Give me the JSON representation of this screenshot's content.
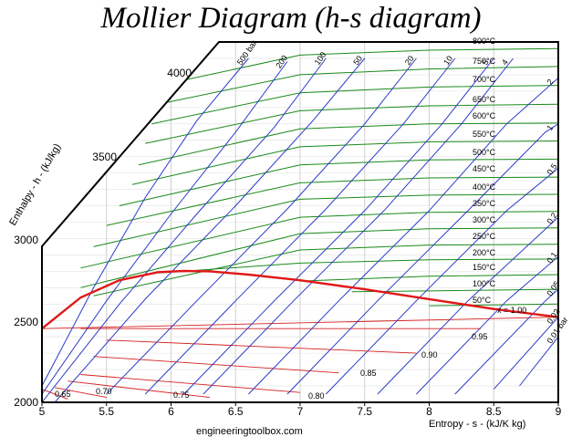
{
  "title": "Mollier Diagram (h-s diagram)",
  "source": "engineeringtoolbox.com",
  "colors": {
    "isobar": "#2a3cc8",
    "isotherm": "#1a8a1a",
    "saturation": "#e01818",
    "quality": "#d62020",
    "axes": "#000000"
  },
  "chart_data": {
    "type": "line",
    "title": "Mollier Diagram (h-s diagram)",
    "xlabel": "Entropy - s - (kJ/K kg)",
    "ylabel": "Enthalpy - h - (kJ/kg)",
    "xlim": [
      5,
      9
    ],
    "ylim": [
      2000,
      4200
    ],
    "x_ticks": [
      "5",
      "5.5",
      "6",
      "6.5",
      "7",
      "7.5",
      "8",
      "8.5",
      "9"
    ],
    "y_ticks": [
      "2000",
      "2500",
      "3000",
      "3500",
      "4000"
    ],
    "grid": true,
    "saturation_curve": {
      "s": [
        5.0,
        5.3,
        5.6,
        5.9,
        6.1,
        6.3,
        6.6,
        7.0,
        7.5,
        8.0,
        8.5,
        9.0
      ],
      "h": [
        2450,
        2640,
        2745,
        2795,
        2802,
        2800,
        2780,
        2745,
        2690,
        2630,
        2570,
        2520
      ]
    },
    "isobars": [
      {
        "name": "500 bar",
        "s": [
          5.0,
          5.4,
          5.8,
          6.2,
          6.6
        ],
        "h": [
          2100,
          2700,
          3250,
          3720,
          4100
        ]
      },
      {
        "name": "200",
        "s": [
          5.0,
          5.5,
          6.0,
          6.5,
          6.9
        ],
        "h": [
          2050,
          2620,
          3150,
          3650,
          4080
        ]
      },
      {
        "name": "100",
        "s": [
          5.0,
          5.6,
          6.2,
          6.8,
          7.2
        ],
        "h": [
          2000,
          2600,
          3150,
          3680,
          4100
        ]
      },
      {
        "name": "50",
        "s": [
          5.1,
          5.8,
          6.5,
          7.1,
          7.5
        ],
        "h": [
          2000,
          2630,
          3200,
          3720,
          4100
        ]
      },
      {
        "name": "20",
        "s": [
          5.5,
          6.2,
          6.9,
          7.5,
          7.9
        ],
        "h": [
          2050,
          2620,
          3180,
          3700,
          4100
        ]
      },
      {
        "name": "10",
        "s": [
          5.8,
          6.5,
          7.2,
          7.8,
          8.2
        ],
        "h": [
          2050,
          2620,
          3180,
          3700,
          4100
        ]
      },
      {
        "name": "5",
        "s": [
          6.1,
          6.8,
          7.5,
          8.1,
          8.5
        ],
        "h": [
          2050,
          2620,
          3170,
          3700,
          4100
        ]
      },
      {
        "name": "4",
        "s": [
          6.25,
          6.95,
          7.65,
          8.25,
          8.65
        ],
        "h": [
          2050,
          2620,
          3170,
          3700,
          4100
        ]
      },
      {
        "name": "2",
        "s": [
          6.6,
          7.3,
          8.0,
          8.6,
          9.0
        ],
        "h": [
          2050,
          2620,
          3170,
          3700,
          3980
        ]
      },
      {
        "name": "1",
        "s": [
          6.9,
          7.6,
          8.3,
          8.9,
          9.0
        ],
        "h": [
          2050,
          2620,
          3170,
          3650,
          3700
        ]
      },
      {
        "name": "0.5",
        "s": [
          7.2,
          7.9,
          8.6,
          9.0
        ],
        "h": [
          2050,
          2620,
          3170,
          3430
        ]
      },
      {
        "name": "0.2",
        "s": [
          7.6,
          8.3,
          9.0
        ],
        "h": [
          2050,
          2620,
          3130
        ]
      },
      {
        "name": "0.1",
        "s": [
          7.9,
          8.6,
          9.0
        ],
        "h": [
          2050,
          2620,
          2890
        ]
      },
      {
        "name": "0.05",
        "s": [
          8.2,
          8.9,
          9.0
        ],
        "h": [
          2050,
          2620,
          2690
        ]
      },
      {
        "name": "0.02",
        "s": [
          8.5,
          9.0
        ],
        "h": [
          2080,
          2520
        ]
      },
      {
        "name": "0.01 bar",
        "s": [
          8.7,
          9.0
        ],
        "h": [
          2100,
          2400
        ]
      }
    ],
    "isotherms": [
      {
        "name": "800°C",
        "s": [
          6.0,
          7.0,
          8.0,
          9.0
        ],
        "h": [
          3950,
          4120,
          4150,
          4160
        ]
      },
      {
        "name": "750°C",
        "s": [
          5.9,
          7.0,
          8.0,
          9.0
        ],
        "h": [
          3820,
          4000,
          4035,
          4050
        ]
      },
      {
        "name": "700°C",
        "s": [
          5.85,
          7.0,
          8.0,
          9.0
        ],
        "h": [
          3700,
          3890,
          3925,
          3935
        ]
      },
      {
        "name": "650°C",
        "s": [
          5.8,
          7.0,
          8.0,
          9.0
        ],
        "h": [
          3580,
          3780,
          3810,
          3820
        ]
      },
      {
        "name": "600°C",
        "s": [
          5.75,
          7.0,
          8.0,
          9.0
        ],
        "h": [
          3450,
          3670,
          3700,
          3705
        ]
      },
      {
        "name": "550°C",
        "s": [
          5.7,
          7.0,
          8.0,
          9.0
        ],
        "h": [
          3330,
          3560,
          3590,
          3595
        ]
      },
      {
        "name": "500°C",
        "s": [
          5.6,
          7.0,
          8.0,
          9.0
        ],
        "h": [
          3200,
          3450,
          3480,
          3485
        ]
      },
      {
        "name": "450°C",
        "s": [
          5.5,
          7.0,
          8.0,
          9.0
        ],
        "h": [
          3080,
          3340,
          3370,
          3375
        ]
      },
      {
        "name": "400°C",
        "s": [
          5.4,
          7.0,
          8.0,
          9.0
        ],
        "h": [
          2950,
          3240,
          3265,
          3270
        ]
      },
      {
        "name": "350°C",
        "s": [
          5.3,
          7.0,
          8.0,
          9.0
        ],
        "h": [
          2820,
          3130,
          3160,
          3165
        ]
      },
      {
        "name": "300°C",
        "s": [
          5.3,
          7.0,
          8.0,
          9.0
        ],
        "h": [
          2700,
          3030,
          3060,
          3065
        ]
      },
      {
        "name": "250°C",
        "s": [
          5.4,
          7.0,
          8.0,
          9.0
        ],
        "h": [
          2650,
          2930,
          2960,
          2965
        ]
      },
      {
        "name": "200°C",
        "s": [
          5.9,
          7.0,
          8.0,
          9.0
        ],
        "h": [
          2790,
          2850,
          2870,
          2875
        ]
      },
      {
        "name": "150°C",
        "s": [
          7.0,
          8.0,
          9.0
        ],
        "h": [
          2740,
          2770,
          2780
        ]
      },
      {
        "name": "100°C",
        "s": [
          7.4,
          8.0,
          9.0
        ],
        "h": [
          2675,
          2680,
          2690
        ]
      },
      {
        "name": "50°C",
        "s": [
          8.0,
          9.0
        ],
        "h": [
          2590,
          2600
        ]
      }
    ],
    "quality_lines": [
      {
        "name": "x = 1.00",
        "s": [
          5.0,
          9.0
        ],
        "h": [
          2450,
          2520
        ]
      },
      {
        "name": "0.95",
        "s": [
          5.3,
          8.4
        ],
        "h": [
          2450,
          2450
        ]
      },
      {
        "name": "0.90",
        "s": [
          5.5,
          7.9
        ],
        "h": [
          2380,
          2300
        ]
      },
      {
        "name": "0.85",
        "s": [
          5.4,
          7.3
        ],
        "h": [
          2280,
          2180
        ]
      },
      {
        "name": "0.80",
        "s": [
          5.3,
          7.0
        ],
        "h": [
          2170,
          2060
        ]
      },
      {
        "name": "0.75",
        "s": [
          5.2,
          6.3
        ],
        "h": [
          2130,
          2030
        ]
      },
      {
        "name": "0.70",
        "s": [
          5.1,
          5.5
        ],
        "h": [
          2090,
          2030
        ]
      },
      {
        "name": "0.65",
        "s": [
          5.0,
          5.2
        ],
        "h": [
          2080,
          2020
        ]
      }
    ]
  },
  "labels": {
    "isobars": [
      "500 bar",
      "200",
      "100",
      "50",
      "20",
      "10",
      "5",
      "4",
      "2",
      "1",
      "0.5",
      "0.2",
      "0.1",
      "0.05",
      "0.02",
      "0.01 bar"
    ],
    "isotherms": [
      "800°C",
      "750°C",
      "700°C",
      "650°C",
      "600°C",
      "550°C",
      "500°C",
      "450°C",
      "400°C",
      "350°C",
      "300°C",
      "250°C",
      "200°C",
      "150°C",
      "100°C",
      "50°C"
    ],
    "qualities": [
      "x = 1.00",
      "0.95",
      "0.90",
      "0.85",
      "0.80",
      "0.75",
      "0.70",
      "0.65"
    ]
  }
}
